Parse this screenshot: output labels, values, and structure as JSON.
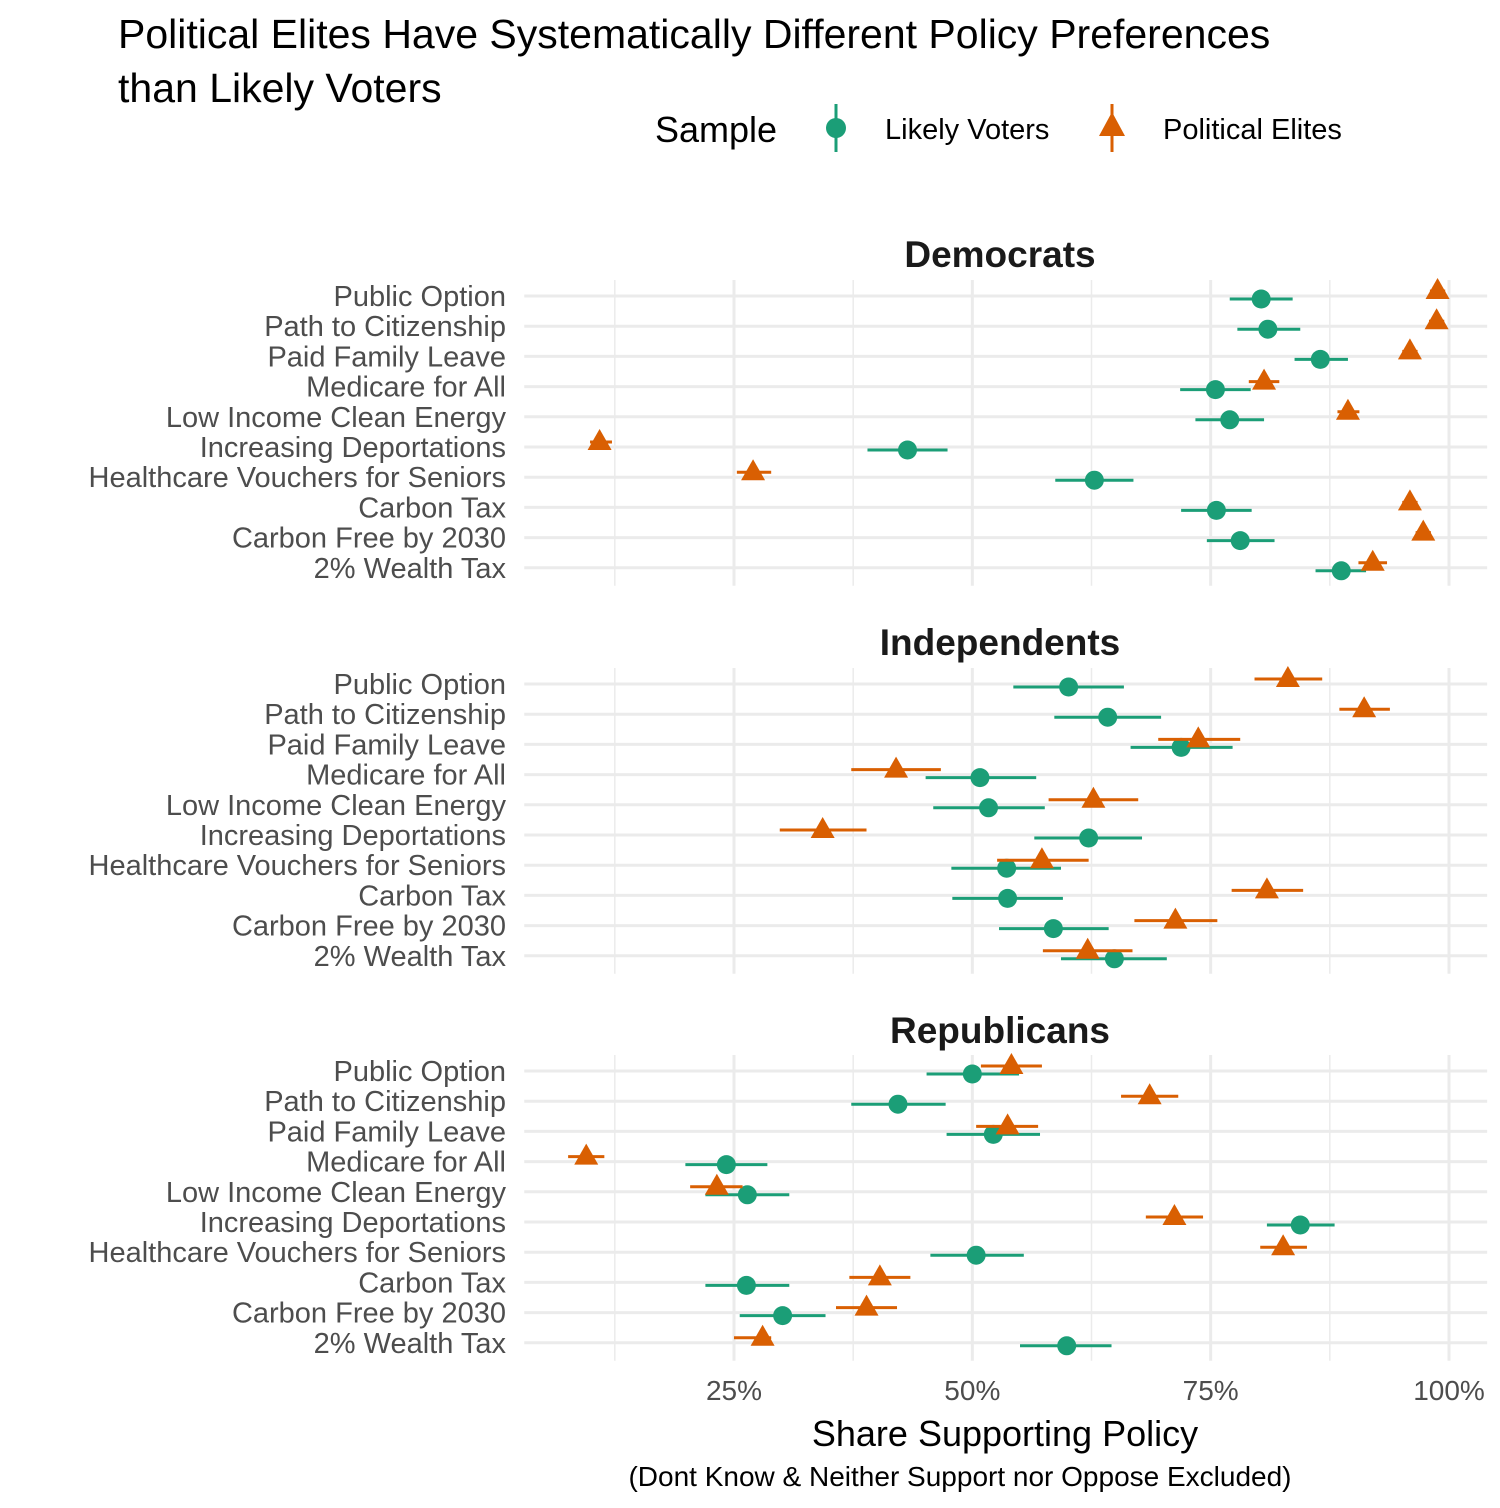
{
  "chart_data": {
    "type": "scatter",
    "title": "Political Elites Have Systematically Different Policy Preferences than Likely Voters",
    "title_lines": [
      "Political Elites Have Systematically Different Policy Preferences",
      "than Likely Voters"
    ],
    "xlabel": "Share Supporting Policy",
    "xlabel_sub": "(Dont Know & Neither Support nor Oppose Excluded)",
    "xlim": [
      3,
      104
    ],
    "xticks": [
      25,
      50,
      75,
      100
    ],
    "xtick_labels": [
      "25%",
      "50%",
      "75%",
      "100%"
    ],
    "grid": true,
    "legend": {
      "title": "Sample",
      "position": "top",
      "entries": [
        "Likely Voters",
        "Political Elites"
      ]
    },
    "colors": {
      "Likely Voters": "#1b9e77",
      "Political Elites": "#d95f02"
    },
    "categories": [
      "Public Option",
      "Path to Citizenship",
      "Paid Family Leave",
      "Medicare for All",
      "Low Income Clean Energy",
      "Increasing Deportations",
      "Healthcare Vouchers for Seniors",
      "Carbon Tax",
      "Carbon Free by 2030",
      "2% Wealth Tax"
    ],
    "value_format": "[estimate, lower, upper] percent",
    "panels": [
      {
        "name": "Democrats",
        "series": [
          {
            "name": "Likely Voters",
            "values": [
              [
                80.3,
                77.0,
                83.6
              ],
              [
                81.0,
                77.8,
                84.4
              ],
              [
                86.5,
                83.8,
                89.4
              ],
              [
                75.5,
                71.8,
                79.2
              ],
              [
                77.0,
                73.4,
                80.6
              ],
              [
                43.2,
                39.0,
                47.4
              ],
              [
                62.8,
                58.7,
                66.9
              ],
              [
                75.6,
                71.9,
                79.3
              ],
              [
                78.1,
                74.6,
                81.7
              ],
              [
                88.7,
                86.0,
                91.3
              ]
            ]
          },
          {
            "name": "Political Elites",
            "values": [
              [
                98.8,
                98.0,
                99.6
              ],
              [
                98.7,
                97.9,
                99.5
              ],
              [
                95.9,
                95.1,
                96.7
              ],
              [
                80.6,
                79.0,
                82.2
              ],
              [
                89.4,
                88.3,
                90.6
              ],
              [
                10.9,
                9.9,
                12.2
              ],
              [
                27.0,
                25.3,
                28.9
              ],
              [
                95.9,
                95.1,
                96.7
              ],
              [
                97.3,
                96.5,
                98.1
              ],
              [
                92.0,
                90.5,
                93.5
              ]
            ]
          }
        ]
      },
      {
        "name": "Independents",
        "series": [
          {
            "name": "Likely Voters",
            "values": [
              [
                60.1,
                54.3,
                65.9
              ],
              [
                64.2,
                58.6,
                69.8
              ],
              [
                71.9,
                66.6,
                77.3
              ],
              [
                50.8,
                45.1,
                56.7
              ],
              [
                51.7,
                45.9,
                57.6
              ],
              [
                62.2,
                56.5,
                67.8
              ],
              [
                53.6,
                47.8,
                59.3
              ],
              [
                53.7,
                47.9,
                59.5
              ],
              [
                58.5,
                52.8,
                64.3
              ],
              [
                64.9,
                59.3,
                70.4
              ]
            ]
          },
          {
            "name": "Political Elites",
            "values": [
              [
                83.1,
                79.6,
                86.7
              ],
              [
                91.1,
                88.5,
                93.8
              ],
              [
                73.7,
                69.5,
                78.1
              ],
              [
                42.0,
                37.3,
                46.7
              ],
              [
                62.7,
                58.0,
                67.4
              ],
              [
                34.3,
                29.8,
                38.9
              ],
              [
                57.3,
                52.6,
                62.2
              ],
              [
                80.9,
                77.2,
                84.7
              ],
              [
                71.3,
                67.0,
                75.7
              ],
              [
                62.1,
                57.4,
                66.8
              ]
            ]
          }
        ]
      },
      {
        "name": "Republicans",
        "series": [
          {
            "name": "Likely Voters",
            "values": [
              [
                50.0,
                45.2,
                54.9
              ],
              [
                42.2,
                37.3,
                47.2
              ],
              [
                52.2,
                47.3,
                57.1
              ],
              [
                24.2,
                19.9,
                28.5
              ],
              [
                26.4,
                22.0,
                30.8
              ],
              [
                84.4,
                80.9,
                88.0
              ],
              [
                50.4,
                45.6,
                55.4
              ],
              [
                26.3,
                22.0,
                30.8
              ],
              [
                30.1,
                25.6,
                34.6
              ],
              [
                59.9,
                55.0,
                64.6
              ]
            ]
          },
          {
            "name": "Political Elites",
            "values": [
              [
                54.1,
                50.9,
                57.3
              ],
              [
                68.6,
                65.6,
                71.6
              ],
              [
                53.7,
                50.4,
                56.9
              ],
              [
                9.5,
                7.6,
                11.4
              ],
              [
                23.2,
                20.4,
                25.9
              ],
              [
                71.2,
                68.2,
                74.2
              ],
              [
                82.6,
                80.2,
                85.1
              ],
              [
                40.3,
                37.1,
                43.5
              ],
              [
                38.9,
                35.7,
                42.1
              ],
              [
                28.0,
                25.0,
                28.9
              ]
            ]
          }
        ]
      }
    ]
  }
}
